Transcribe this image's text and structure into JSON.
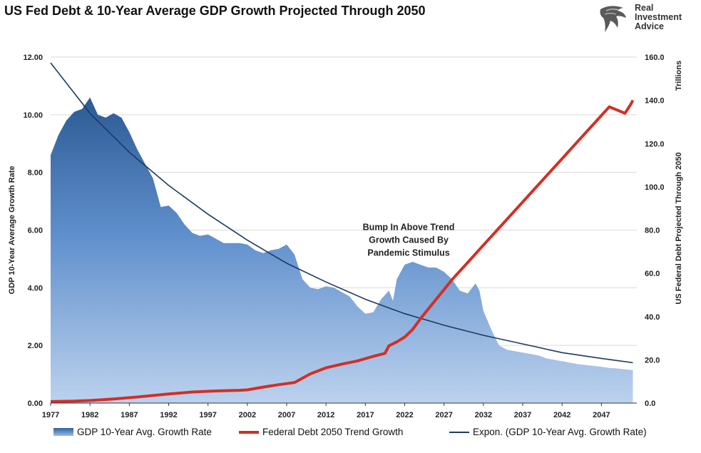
{
  "title": "US Fed Debt & 10-Year Average GDP Growth Projected Through 2050",
  "logo": {
    "icon": "eagle-head-icon",
    "lines": [
      "Real",
      "Investment",
      "Advice"
    ]
  },
  "chart_data": {
    "type": "area",
    "title": "US Fed Debt & 10-Year Average GDP Growth Projected Through 2050",
    "xlabel": "",
    "ylabel_left": "GDP 10-Year Average Growth Rate",
    "ylabel_right": "US Federal Debt Projected Through 2050",
    "ylabel_right_unit": "Trillions",
    "xlim": [
      1977,
      2051.5
    ],
    "ylim_left": [
      0,
      12
    ],
    "ylim_right": [
      0,
      160
    ],
    "x_tick_labels": [
      "1977",
      "1982",
      "1987",
      "1992",
      "1997",
      "2002",
      "2007",
      "2012",
      "2017",
      "2022",
      "2027",
      "2032",
      "2037",
      "2042",
      "2047"
    ],
    "x_ticks": [
      1977,
      1982,
      1987,
      1992,
      1997,
      2002,
      2007,
      2012,
      2017,
      2022,
      2027,
      2032,
      2037,
      2042,
      2047
    ],
    "y_left_tick_labels": [
      "0.00",
      "2.00",
      "4.00",
      "6.00",
      "8.00",
      "10.00",
      "12.00"
    ],
    "y_left_ticks": [
      0,
      2,
      4,
      6,
      8,
      10,
      12
    ],
    "y_right_tick_labels": [
      "0.0",
      "20.0",
      "40.0",
      "60.0",
      "80.0",
      "100.0",
      "120.0",
      "140.0",
      "160.0"
    ],
    "y_right_ticks": [
      0,
      20,
      40,
      60,
      80,
      100,
      120,
      140,
      160
    ],
    "grid": "horizontal",
    "legend_position": "bottom",
    "colors": {
      "area_top": "#2c5a94",
      "area_bottom": "#bcd2ee",
      "debt_line": "#d32f24",
      "trend_line": "#1c3a63",
      "grid": "#d9d9d9"
    },
    "series": [
      {
        "name": "GDP 10-Year Avg. Growth Rate",
        "axis": "left",
        "kind": "area",
        "x": [
          1977,
          1978,
          1979,
          1980,
          1981,
          1982,
          1983,
          1984,
          1985,
          1986,
          1987,
          1988,
          1989,
          1990,
          1991,
          1992,
          1993,
          1994,
          1995,
          1996,
          1997,
          1998,
          1999,
          2000,
          2001,
          2002,
          2003,
          2004,
          2005,
          2006,
          2007,
          2008,
          2009,
          2010,
          2011,
          2012,
          2013,
          2014,
          2015,
          2016,
          2017,
          2018,
          2019,
          2020,
          2020.5,
          2021,
          2022,
          2023,
          2024,
          2025,
          2026,
          2027,
          2028,
          2029,
          2030,
          2031,
          2031.5,
          2032,
          2033,
          2034,
          2035,
          2036,
          2037,
          2038,
          2039,
          2040,
          2041,
          2042,
          2043,
          2044,
          2045,
          2046,
          2047,
          2048,
          2049,
          2050,
          2051
        ],
        "values": [
          8.6,
          9.3,
          9.8,
          10.1,
          10.2,
          10.6,
          10.0,
          9.9,
          10.05,
          9.9,
          9.4,
          8.8,
          8.3,
          7.8,
          6.8,
          6.85,
          6.6,
          6.2,
          5.9,
          5.8,
          5.85,
          5.7,
          5.55,
          5.55,
          5.55,
          5.5,
          5.3,
          5.2,
          5.3,
          5.35,
          5.5,
          5.15,
          4.3,
          4.0,
          3.95,
          4.05,
          4.0,
          3.85,
          3.7,
          3.35,
          3.1,
          3.15,
          3.6,
          3.9,
          3.55,
          4.3,
          4.8,
          4.9,
          4.8,
          4.7,
          4.7,
          4.55,
          4.3,
          3.9,
          3.8,
          4.15,
          3.9,
          3.2,
          2.55,
          2.0,
          1.85,
          1.8,
          1.75,
          1.7,
          1.65,
          1.55,
          1.5,
          1.45,
          1.4,
          1.35,
          1.32,
          1.29,
          1.26,
          1.22,
          1.2,
          1.17,
          1.14
        ]
      },
      {
        "name": "Federal Debt 2050 Trend Growth",
        "axis": "right",
        "kind": "line",
        "x": [
          1977,
          1980,
          1982,
          1985,
          1988,
          1990,
          1992,
          1995,
          1998,
          2001,
          2002,
          2004,
          2006,
          2008,
          2009,
          2010,
          2012,
          2014,
          2016,
          2018,
          2019.5,
          2020,
          2021,
          2022,
          2023,
          2024,
          2026,
          2028,
          2030,
          2032,
          2034,
          2036,
          2038,
          2040,
          2042,
          2044,
          2046,
          2048,
          2050,
          2050.7,
          2051
        ],
        "values": [
          0.7,
          0.9,
          1.2,
          1.9,
          2.8,
          3.5,
          4.2,
          5.1,
          5.6,
          5.9,
          6.1,
          7.4,
          8.5,
          9.5,
          11.5,
          13.5,
          16.3,
          18.0,
          19.5,
          21.6,
          23.0,
          26.5,
          28.3,
          30.5,
          34.0,
          39.0,
          48.0,
          57.0,
          65.0,
          73.0,
          81.0,
          89.0,
          97.0,
          105.0,
          113.0,
          121.0,
          129.0,
          137.0,
          134.0,
          138.0,
          140.0
        ]
      },
      {
        "name": "Expon. (GDP 10-Year Avg. Growth Rate)",
        "axis": "left",
        "kind": "trendline",
        "x": [
          1977,
          1982,
          1987,
          1992,
          1997,
          2002,
          2007,
          2012,
          2017,
          2022,
          2027,
          2032,
          2037,
          2042,
          2047,
          2051
        ],
        "values": [
          11.8,
          10.05,
          8.7,
          7.55,
          6.55,
          5.65,
          4.85,
          4.2,
          3.6,
          3.1,
          2.7,
          2.35,
          2.05,
          1.75,
          1.55,
          1.4
        ]
      }
    ],
    "annotations": [
      {
        "lines": [
          "Bump In Above Trend",
          "Growth Caused By",
          "Pandemic Stimulus"
        ],
        "x": 2022.5,
        "y": 6.0
      }
    ]
  }
}
